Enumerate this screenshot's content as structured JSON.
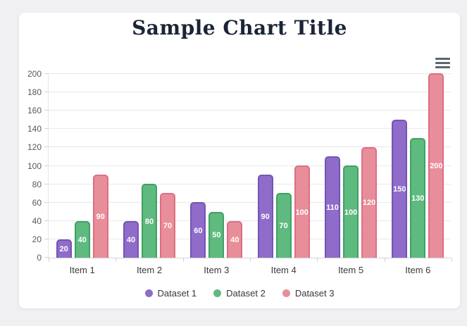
{
  "page": {
    "background": "#f0f0f2",
    "card_background": "#ffffff"
  },
  "header": {
    "title": "Sample Chart Title",
    "title_color": "#1b2437",
    "menu_icon": "hamburger-icon"
  },
  "chart_data": {
    "type": "bar",
    "title": "Sample Chart Title",
    "categories": [
      "Item 1",
      "Item 2",
      "Item 3",
      "Item 4",
      "Item 5",
      "Item 6"
    ],
    "series": [
      {
        "name": "Dataset 1",
        "color": "#8f6cc9",
        "border_color": "#7454b3",
        "values": [
          20,
          40,
          60,
          90,
          110,
          150
        ]
      },
      {
        "name": "Dataset 2",
        "color": "#5fba80",
        "border_color": "#42a066",
        "values": [
          40,
          80,
          50,
          70,
          100,
          130
        ]
      },
      {
        "name": "Dataset 3",
        "color": "#e88e9b",
        "border_color": "#de6e82",
        "values": [
          90,
          70,
          40,
          100,
          120,
          200
        ]
      }
    ],
    "xlabel": "",
    "ylabel": "",
    "ylim": [
      0,
      200
    ],
    "ytick_step": 20,
    "ytick_labels": [
      "0",
      "20",
      "40",
      "60",
      "80",
      "100",
      "120",
      "140",
      "160",
      "180",
      "200"
    ],
    "grid": true,
    "grid_color": "#e9e9ec",
    "legend_position": "bottom",
    "value_labels": "inside-center-white"
  }
}
